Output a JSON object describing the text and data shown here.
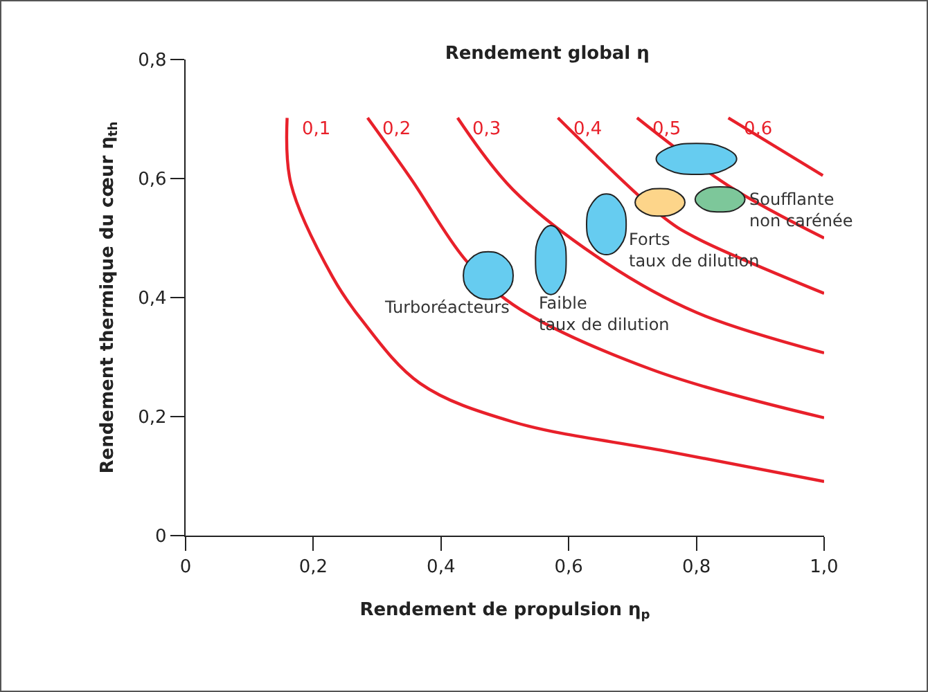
{
  "chart_data": {
    "type": "line",
    "title": "Rendement global η",
    "xlabel": "Rendement de propulsion η$_{p}$",
    "ylabel": "Rendement thermique du cœur η$_{th}$",
    "xlim": [
      0,
      1
    ],
    "ylim": [
      0,
      0.8
    ],
    "xticks": [
      0,
      {
        "value": 0.2,
        "label": "0,2"
      },
      {
        "value": 0.4,
        "label": "0,4"
      },
      {
        "value": 0.6,
        "label": "0,6"
      },
      {
        "value": 0.8,
        "label": "0,8"
      },
      {
        "value": 1,
        "label": "1,0"
      }
    ],
    "yticks": [
      0,
      {
        "value": 0.2,
        "label": "0,2"
      },
      {
        "value": 0.4,
        "label": "0,4"
      },
      {
        "value": 0.6,
        "label": "0,6"
      },
      {
        "value": 0.8,
        "label": "0,8"
      }
    ],
    "grid": false,
    "series": [
      {
        "name": "0,1",
        "color": "#e8202a",
        "x": [
          0.159,
          0.165,
          0.23,
          0.274,
          0.367,
          0.513,
          0.752,
          1.0
        ],
        "values": [
          0.702,
          0.591,
          0.435,
          0.365,
          0.256,
          0.191,
          0.142,
          0.091
        ]
      },
      {
        "name": "0,2",
        "color": "#e8202a",
        "x": [
          0.285,
          0.354,
          0.437,
          0.513,
          0.73,
          1.0
        ],
        "values": [
          0.702,
          0.598,
          0.465,
          0.388,
          0.279,
          0.198
        ]
      },
      {
        "name": "0,3",
        "color": "#e8202a",
        "x": [
          0.426,
          0.513,
          0.659,
          0.8,
          1.0
        ],
        "values": [
          0.702,
          0.581,
          0.458,
          0.375,
          0.307
        ]
      },
      {
        "name": "0,4",
        "color": "#e8202a",
        "x": [
          0.583,
          0.752,
          0.8,
          1.0
        ],
        "values": [
          0.702,
          0.532,
          0.5,
          0.407
        ]
      },
      {
        "name": "0,5",
        "color": "#e8202a",
        "x": [
          0.707,
          0.85,
          1.0
        ],
        "values": [
          0.702,
          0.588,
          0.5
        ]
      },
      {
        "name": "0,6",
        "color": "#e8202a",
        "x": [
          0.85,
          0.998
        ],
        "values": [
          0.702,
          0.605
        ]
      },
      {
        "type": "area",
        "name": "Turboréacteurs",
        "color": "#66ccf0",
        "x": [
          0.513,
          0.502,
          0.474,
          0.446,
          0.435,
          0.446,
          0.474,
          0.502,
          0.513
        ],
        "values": [
          0.437,
          0.465,
          0.477,
          0.465,
          0.437,
          0.409,
          0.397,
          0.409,
          0.437
        ]
      },
      {
        "type": "area",
        "name": "Faible\ntaux de dilution",
        "color": "#66ccf0",
        "x": [
          0.596,
          0.589,
          0.572,
          0.555,
          0.548,
          0.555,
          0.572,
          0.589,
          0.596
        ],
        "values": [
          0.463,
          0.504,
          0.521,
          0.504,
          0.463,
          0.422,
          0.405,
          0.422,
          0.463
        ]
      },
      {
        "type": "area",
        "name": "Forts\ntaux de dilution",
        "color": "#66ccf0",
        "x": [
          0.69,
          0.681,
          0.659,
          0.637,
          0.628,
          0.637,
          0.659,
          0.681,
          0.69
        ],
        "values": [
          0.523,
          0.559,
          0.574,
          0.559,
          0.523,
          0.487,
          0.472,
          0.487,
          0.523
        ]
      },
      {
        "type": "area",
        "color": "#66ccf0",
        "x": [
          0.863,
          0.845,
          0.8,
          0.755,
          0.737,
          0.755,
          0.8,
          0.845,
          0.863
        ],
        "values": [
          0.633,
          0.651,
          0.659,
          0.651,
          0.633,
          0.615,
          0.607,
          0.615,
          0.633
        ]
      },
      {
        "type": "area",
        "color": "#fdd58a",
        "x": [
          0.782,
          0.771,
          0.743,
          0.715,
          0.704,
          0.715,
          0.743,
          0.771,
          0.782
        ],
        "values": [
          0.56,
          0.576,
          0.583,
          0.576,
          0.56,
          0.544,
          0.537,
          0.544,
          0.56
        ]
      },
      {
        "type": "area",
        "name": "Soufflante\nnon carénée",
        "color": "#7dc79a",
        "x": [
          0.876,
          0.865,
          0.837,
          0.809,
          0.798,
          0.809,
          0.837,
          0.865,
          0.876
        ],
        "values": [
          0.565,
          0.58,
          0.586,
          0.58,
          0.565,
          0.55,
          0.544,
          0.55,
          0.565
        ]
      }
    ]
  }
}
